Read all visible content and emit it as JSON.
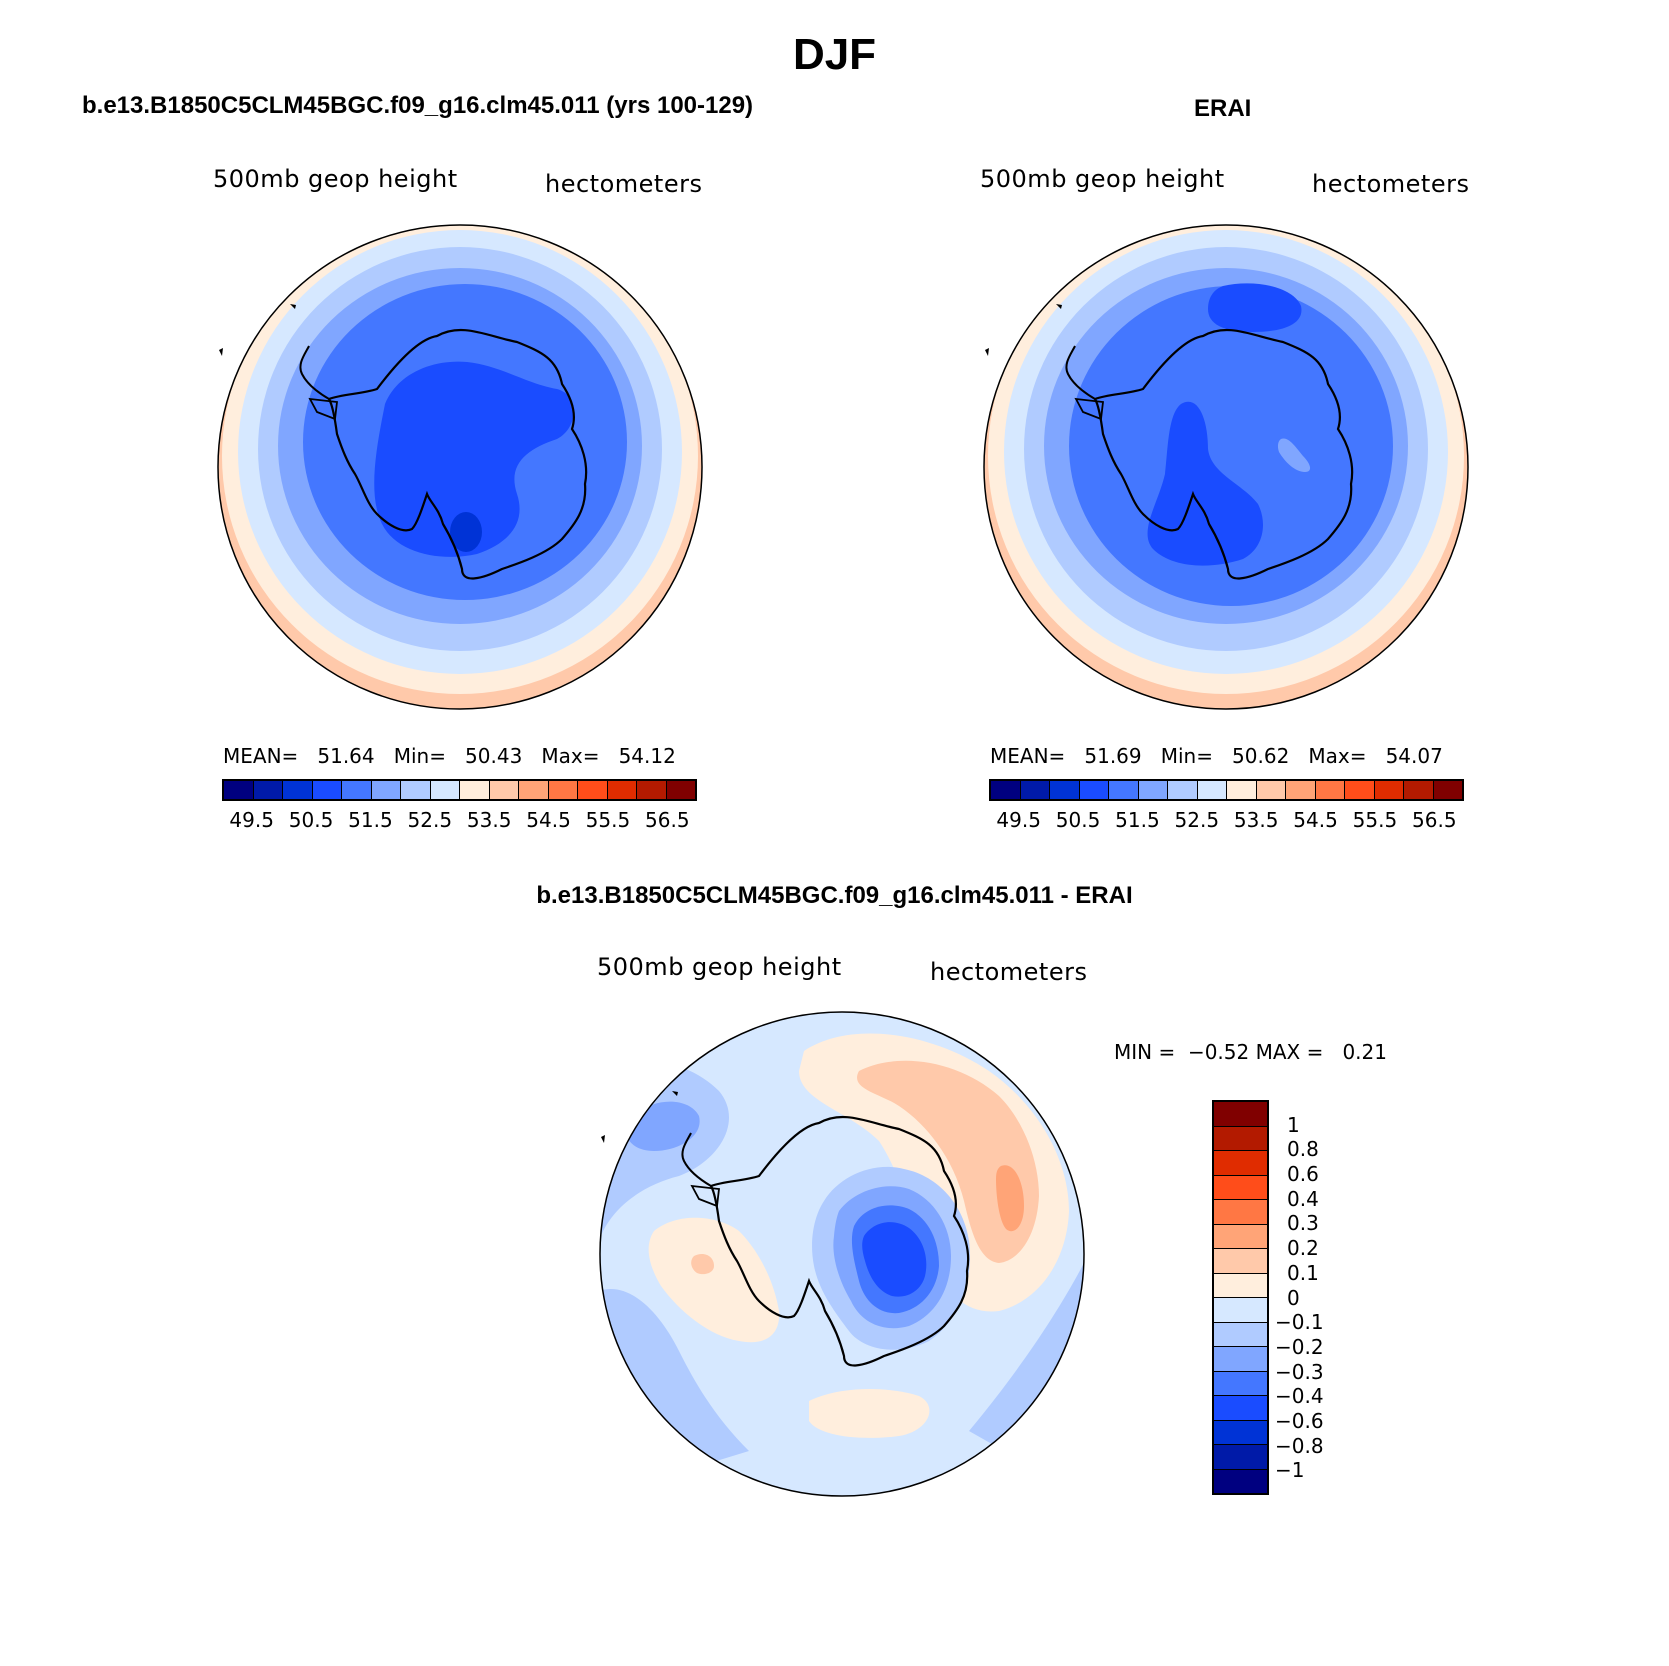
{
  "title": "DJF",
  "panels": [
    {
      "title": "b.e13.B1850C5CLM45BGC.f09_g16.clm45.011 (yrs 100-129)",
      "left_label": "500mb geop height",
      "right_label": "hectometers",
      "stats": {
        "mean_label": "MEAN=",
        "mean": "51.64",
        "min_label": "Min=",
        "min": "50.43",
        "max_label": "Max=",
        "max": "54.12"
      }
    },
    {
      "title": "ERAI",
      "left_label": "500mb geop height",
      "right_label": "hectometers",
      "stats": {
        "mean_label": "MEAN=",
        "mean": "51.69",
        "min_label": "Min=",
        "min": "50.62",
        "max_label": "Max=",
        "max": "54.07"
      }
    },
    {
      "title": "b.e13.B1850C5CLM45BGC.f09_g16.clm45.011 - ERAI",
      "left_label": "500mb geop height",
      "right_label": "hectometers",
      "stats": {
        "min_label": "MIN =",
        "min": "−0.52",
        "max_label": "MAX =",
        "max": "0.21"
      }
    }
  ],
  "colorbar_abs": {
    "colors": [
      "#000080",
      "#001aa8",
      "#0033d6",
      "#1a4cff",
      "#4477ff",
      "#80a6ff",
      "#b0cbff",
      "#d6e8ff",
      "#ffeedd",
      "#ffc9aa",
      "#ffa477",
      "#ff7744",
      "#ff4d1a",
      "#e02c00",
      "#b31a00",
      "#800000"
    ],
    "labels": [
      "49.5",
      "50.5",
      "51.5",
      "52.5",
      "53.5",
      "54.5",
      "55.5",
      "56.5"
    ]
  },
  "colorbar_diff": {
    "colors": [
      "#800000",
      "#b31a00",
      "#e02c00",
      "#ff4d1a",
      "#ff7744",
      "#ffa477",
      "#ffc9aa",
      "#ffeedd",
      "#d6e8ff",
      "#b0cbff",
      "#80a6ff",
      "#4477ff",
      "#1a4cff",
      "#0033d6",
      "#001aa8",
      "#000080"
    ],
    "labels": [
      "1",
      "0.8",
      "0.6",
      "0.4",
      "0.3",
      "0.2",
      "0.1",
      "0",
      "−0.1",
      "−0.2",
      "−0.3",
      "−0.4",
      "−0.6",
      "−0.8",
      "−1"
    ]
  }
}
